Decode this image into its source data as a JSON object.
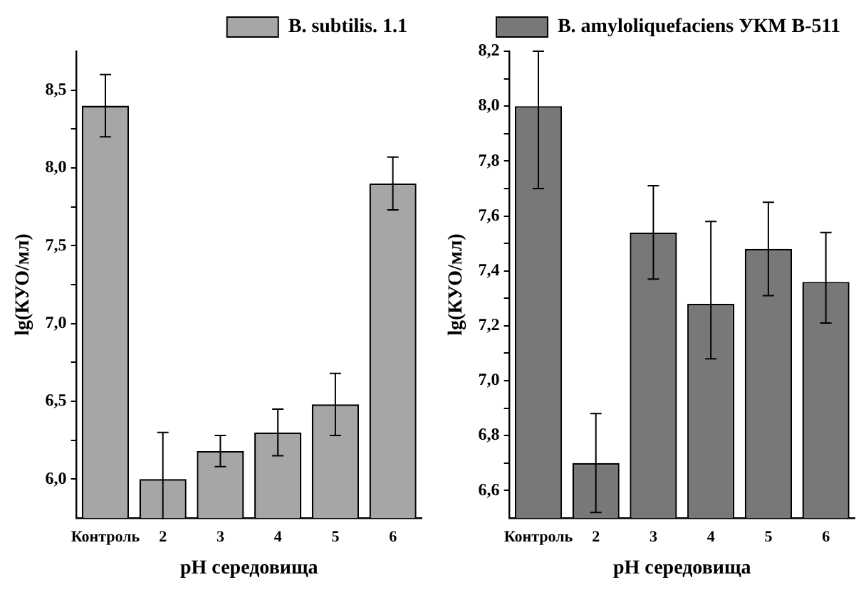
{
  "chart_data": [
    {
      "type": "bar",
      "xlabel": "pH середовища",
      "ylabel": "lg(КУО/мл)",
      "categories": [
        "Контроль",
        "2",
        "3",
        "4",
        "5",
        "6"
      ],
      "series": [
        {
          "name": "B. subtilis. 1.1",
          "color": "#a6a6a6",
          "values": [
            8.4,
            6.0,
            6.18,
            6.3,
            6.48,
            7.9
          ],
          "errors": [
            0.2,
            0.3,
            0.1,
            0.15,
            0.2,
            0.17
          ]
        }
      ],
      "ylim": [
        5.75,
        8.75
      ],
      "yticks": [
        {
          "value": 6,
          "label": "6,0"
        },
        {
          "value": 6.25,
          "label": null
        },
        {
          "value": 6.5,
          "label": "6,5"
        },
        {
          "value": 6.75,
          "label": null
        },
        {
          "value": 7,
          "label": "7,0"
        },
        {
          "value": 7.25,
          "label": null
        },
        {
          "value": 7.5,
          "label": "7,5"
        },
        {
          "value": 7.75,
          "label": null
        },
        {
          "value": 8,
          "label": "8,0"
        },
        {
          "value": 8.25,
          "label": null
        },
        {
          "value": 8.5,
          "label": "8,5"
        }
      ],
      "grid": false,
      "legend": "top"
    },
    {
      "type": "bar",
      "xlabel": "pH середовища",
      "ylabel": "lg(КУО/мл)",
      "categories": [
        "Контроль",
        "2",
        "3",
        "4",
        "5",
        "6"
      ],
      "series": [
        {
          "name": "B. amyloliquefaciens УКМ В-511",
          "color": "#787878",
          "values": [
            8.0,
            6.7,
            7.54,
            7.28,
            7.48,
            7.36
          ],
          "errors": [
            [
              7.7,
              8.2
            ],
            0.18,
            0.17,
            [
              7.08,
              7.58
            ],
            0.17,
            [
              7.21,
              7.54
            ]
          ]
        }
      ],
      "ylim": [
        6.5,
        8.2
      ],
      "yticks": [
        {
          "value": 6.6,
          "label": "6,6"
        },
        {
          "value": 6.7,
          "label": null
        },
        {
          "value": 6.8,
          "label": "6,8"
        },
        {
          "value": 6.9,
          "label": null
        },
        {
          "value": 7,
          "label": "7,0"
        },
        {
          "value": 7.1,
          "label": null
        },
        {
          "value": 7.2,
          "label": "7,2"
        },
        {
          "value": 7.3,
          "label": null
        },
        {
          "value": 7.4,
          "label": "7,4"
        },
        {
          "value": 7.5,
          "label": null
        },
        {
          "value": 7.6,
          "label": "7,6"
        },
        {
          "value": 7.7,
          "label": null
        },
        {
          "value": 7.8,
          "label": "7,8"
        },
        {
          "value": 7.9,
          "label": null
        },
        {
          "value": 8,
          "label": "8,0"
        },
        {
          "value": 8.1,
          "label": null
        },
        {
          "value": 8.2,
          "label": "8,2"
        }
      ],
      "grid": false,
      "legend": "top"
    }
  ]
}
